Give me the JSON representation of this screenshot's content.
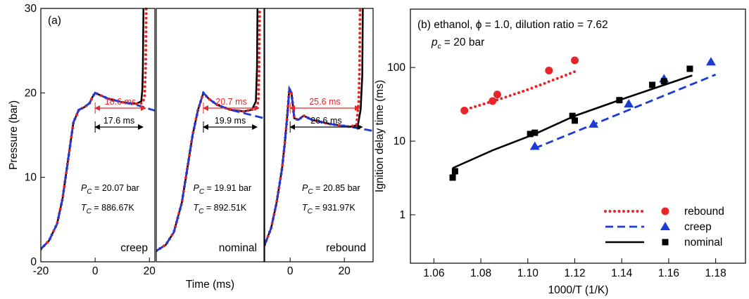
{
  "chart_data": [
    {
      "type": "line",
      "panel_label": "(a)",
      "ylabel": "Pressure (bar)",
      "xlim": [
        -20,
        22
      ],
      "xticks": [
        -20,
        0,
        20
      ],
      "ylim": [
        0,
        30
      ],
      "yticks": [
        0,
        10,
        20,
        30
      ],
      "series": [
        {
          "color": "#000000",
          "style": "solid",
          "x": [
            -20,
            -17,
            -14,
            -12,
            -10,
            -8,
            -6,
            -4,
            -2,
            -1,
            0,
            2,
            5,
            10,
            15,
            17,
            17.4,
            17.6,
            17.8
          ],
          "values": [
            1.5,
            2.5,
            4.5,
            7.5,
            12,
            16.5,
            18,
            18.3,
            18.8,
            19.5,
            20,
            19.7,
            19.3,
            18.9,
            18.7,
            19,
            20.5,
            23,
            30
          ]
        },
        {
          "color": "#e8262a",
          "style": "dot",
          "x": [
            -20,
            -17,
            -14,
            -12,
            -10,
            -8,
            -6,
            -4,
            -2,
            -1,
            0,
            2,
            5,
            10,
            15,
            17.5,
            18.2,
            18.6,
            18.8
          ],
          "values": [
            1.5,
            2.5,
            4.5,
            7.5,
            12,
            16.5,
            18,
            18.3,
            18.8,
            19.5,
            20,
            19.7,
            19.3,
            18.9,
            18.7,
            18.8,
            19.5,
            23,
            30
          ]
        },
        {
          "color": "#1a3bd6",
          "style": "dash",
          "x": [
            -20,
            -17,
            -14,
            -12,
            -10,
            -8,
            -6,
            -4,
            -2,
            -1,
            0,
            2,
            5,
            10,
            15,
            22
          ],
          "values": [
            1.5,
            2.5,
            4.5,
            7.5,
            12,
            16.5,
            18,
            18.3,
            18.8,
            19.5,
            20,
            19.7,
            19.3,
            18.9,
            18.6,
            17.9
          ]
        }
      ],
      "arrows": [
        {
          "value": 18.6,
          "label": "18.6 ms",
          "color": "#e8262a"
        },
        {
          "value": 17.6,
          "label": "17.6 ms",
          "color": "#000000"
        }
      ],
      "pc": {
        "symbol": "P",
        "sub": "C",
        "text": " = 20.07 bar"
      },
      "tc": {
        "symbol": "T",
        "sub": "C",
        "text": " = 886.67K"
      },
      "name": "creep"
    },
    {
      "type": "line",
      "xlabel": "Time (ms)",
      "xlim": [
        -17.5,
        22.5
      ],
      "ylim": [
        0,
        30
      ],
      "series": [
        {
          "color": "#000000",
          "style": "solid",
          "x": [
            -17.5,
            -14,
            -11,
            -8,
            -6,
            -4,
            -2,
            0,
            2,
            5,
            10,
            15,
            18,
            19.5,
            19.9,
            20.1
          ],
          "values": [
            1.3,
            2,
            3.5,
            7,
            11,
            15,
            18,
            20,
            19.3,
            18.6,
            18,
            17.8,
            18,
            19,
            23,
            30
          ]
        },
        {
          "color": "#e8262a",
          "style": "dot",
          "x": [
            -17.5,
            -14,
            -11,
            -8,
            -6,
            -4,
            -2,
            0,
            2,
            5,
            10,
            15,
            18,
            19.8,
            20.4,
            20.7,
            20.9
          ],
          "values": [
            1.3,
            2,
            3.5,
            7,
            11,
            15,
            18,
            20,
            19.3,
            18.6,
            18,
            17.8,
            18,
            18.3,
            19,
            23,
            30
          ]
        },
        {
          "color": "#1a3bd6",
          "style": "dash",
          "x": [
            -17.5,
            -14,
            -11,
            -8,
            -6,
            -4,
            -2,
            0,
            2,
            5,
            10,
            15,
            22.5
          ],
          "values": [
            1.3,
            2,
            3.5,
            7,
            11,
            15,
            18,
            20,
            19.3,
            18.6,
            18,
            17.6,
            17
          ]
        }
      ],
      "arrows": [
        {
          "value": 20.7,
          "label": "20.7 ms",
          "color": "#e8262a"
        },
        {
          "value": 19.9,
          "label": "19.9 ms",
          "color": "#000000"
        }
      ],
      "pc": {
        "symbol": "P",
        "sub": "C",
        "text": " = 19.91 bar"
      },
      "tc": {
        "symbol": "T",
        "sub": "C",
        "text": " = 892.51K"
      },
      "name": "nominal"
    },
    {
      "type": "line",
      "xlim": [
        -9.4,
        30.6
      ],
      "xticks": [
        0,
        20
      ],
      "ylim": [
        0,
        30
      ],
      "series": [
        {
          "color": "#000000",
          "style": "solid",
          "x": [
            -9.4,
            -7,
            -5,
            -3,
            -2,
            -1,
            -0.3,
            0.5,
            1.5,
            3,
            5,
            8,
            15,
            22,
            25,
            26,
            26.6,
            26.8
          ],
          "values": [
            2,
            4,
            7,
            11,
            14,
            17.5,
            20.5,
            20,
            17,
            16.8,
            17.3,
            16.8,
            16.3,
            16,
            16.2,
            18,
            22,
            30
          ]
        },
        {
          "color": "#e8262a",
          "style": "dot",
          "x": [
            -9.4,
            -7,
            -5,
            -3,
            -2,
            -1,
            -0.3,
            0.5,
            1.5,
            3,
            5,
            8,
            15,
            22,
            24.5,
            25.3,
            25.6,
            25.8
          ],
          "values": [
            2,
            4,
            7,
            11,
            14,
            17.5,
            20.5,
            20,
            17,
            16.8,
            17.3,
            16.8,
            16.3,
            16,
            16.2,
            19,
            23,
            30
          ]
        },
        {
          "color": "#1a3bd6",
          "style": "dash",
          "x": [
            -9.4,
            -7,
            -5,
            -3,
            -2,
            -1,
            -0.3,
            0.5,
            1.5,
            3,
            5,
            8,
            15,
            22,
            30.6
          ],
          "values": [
            2,
            4,
            7,
            11,
            14,
            17.5,
            20.5,
            20,
            17,
            16.8,
            17.3,
            16.8,
            16.3,
            16,
            15.5
          ]
        }
      ],
      "arrows": [
        {
          "value": 25.6,
          "label": "25.6 ms",
          "color": "#e8262a"
        },
        {
          "value": 26.6,
          "label": "26.6 ms",
          "color": "#000000"
        }
      ],
      "pc": {
        "symbol": "P",
        "sub": "C",
        "text": " = 20.85 bar"
      },
      "tc": {
        "symbol": "T",
        "sub": "C",
        "text": " = 931.97K"
      },
      "name": "rebound"
    },
    {
      "type": "scatter",
      "title": "(b) ethanol, ϕ = 1.0, dilution ratio = 7.62",
      "subtitle": {
        "symbol": "p",
        "sub": "c",
        "text": " = 20 bar"
      },
      "xlabel": "1000/T (1/K)",
      "ylabel": "Ignition delay time (ms)",
      "xlim": [
        1.05,
        1.193
      ],
      "xticks": [
        1.06,
        1.08,
        {
          "value": 1.1,
          "label": "1.10"
        },
        1.12,
        1.14,
        1.16,
        1.18
      ],
      "ylim": [
        0.22,
        620
      ],
      "yticks": [
        1,
        10,
        100
      ],
      "ylog": true,
      "legend": "lower right",
      "series": [
        {
          "name": "rebound",
          "color": "#e8262a",
          "marker": "circle",
          "style": "dot",
          "x": [
            1.073,
            1.085,
            1.087,
            1.109,
            1.12
          ],
          "values": [
            26,
            35,
            43,
            91,
            125
          ],
          "fit_x": [
            1.072,
            1.08,
            1.09,
            1.1,
            1.11,
            1.12
          ],
          "fit_values": [
            26,
            31,
            39,
            50,
            66,
            88
          ]
        },
        {
          "name": "creep",
          "color": "#1a3bd6",
          "marker": "triangle",
          "style": "dash",
          "x": [
            1.103,
            1.128,
            1.143,
            1.158,
            1.178
          ],
          "values": [
            8.5,
            17,
            32,
            70,
            119
          ],
          "fit_x": [
            1.103,
            1.18
          ],
          "fit_values": [
            8,
            80
          ]
        },
        {
          "name": "nominal",
          "color": "#000000",
          "marker": "square",
          "style": "solid",
          "x": [
            1.068,
            1.069,
            1.101,
            1.103,
            1.119,
            1.12,
            1.139,
            1.153,
            1.158,
            1.169
          ],
          "values": [
            3.2,
            3.9,
            12.5,
            13,
            22,
            19,
            36,
            58,
            65,
            96
          ],
          "fit_x": [
            1.068,
            1.085,
            1.103,
            1.12,
            1.14,
            1.17
          ],
          "fit_values": [
            4.3,
            7.5,
            12.5,
            22,
            37,
            78
          ]
        }
      ]
    }
  ]
}
